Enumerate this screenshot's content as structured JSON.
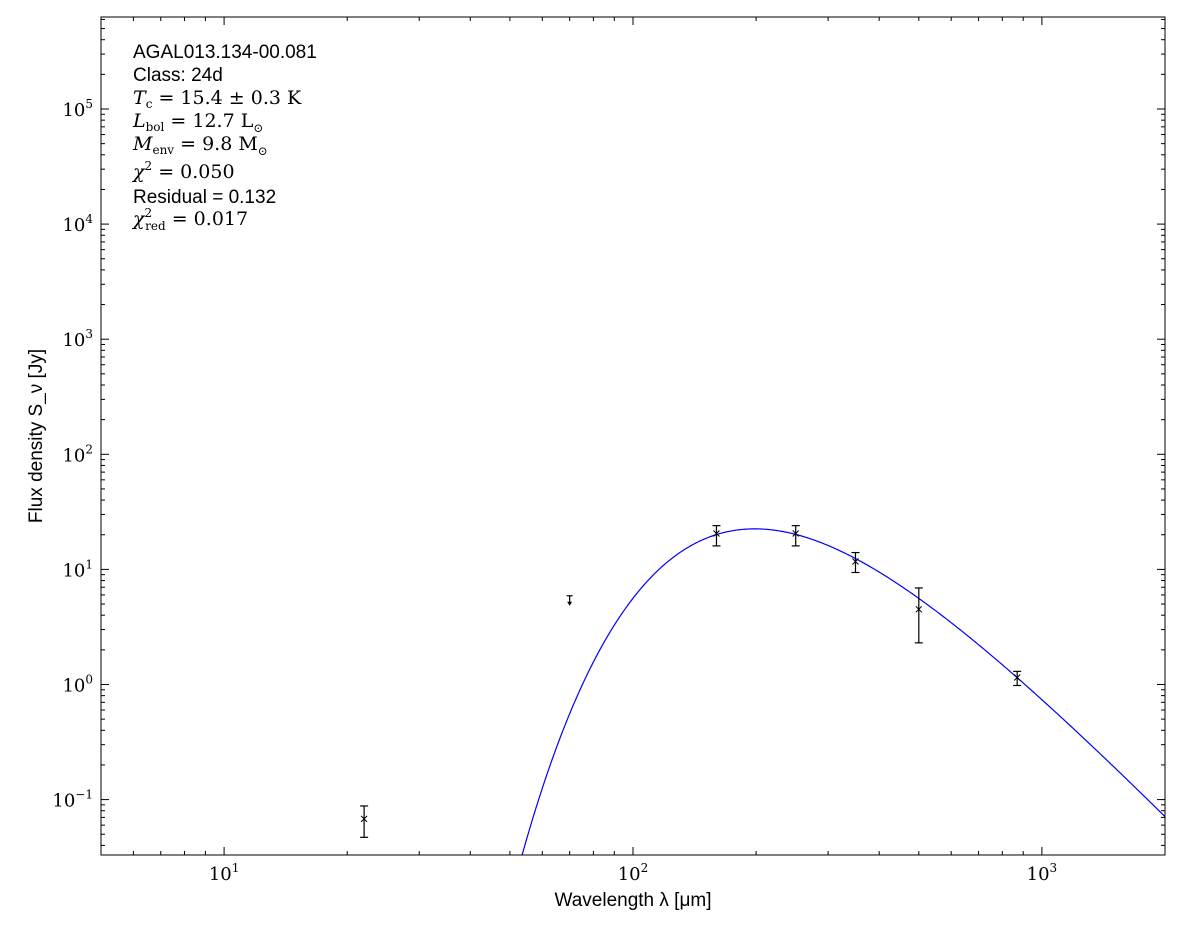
{
  "chart_data": {
    "type": "scatter",
    "xlabel": "Wavelength λ [μm]",
    "ylabel": "Flux density S_ν [Jy]",
    "xscale": "log",
    "yscale": "log",
    "xlim": [
      5,
      2000
    ],
    "ylim": [
      0.033,
      630000
    ],
    "xticks": [
      {
        "value": 10,
        "base": "10",
        "exp": "1"
      },
      {
        "value": 100,
        "base": "10",
        "exp": "2"
      },
      {
        "value": 1000,
        "base": "10",
        "exp": "3"
      }
    ],
    "yticks": [
      {
        "value": 0.1,
        "base": "10",
        "exp": "−1"
      },
      {
        "value": 1,
        "base": "10",
        "exp": "0"
      },
      {
        "value": 10,
        "base": "10",
        "exp": "1"
      },
      {
        "value": 100,
        "base": "10",
        "exp": "2"
      },
      {
        "value": 1000,
        "base": "10",
        "exp": "3"
      },
      {
        "value": 10000,
        "base": "10",
        "exp": "4"
      },
      {
        "value": 100000,
        "base": "10",
        "exp": "5"
      }
    ],
    "grid": false,
    "points": [
      {
        "x": 22,
        "y": 0.068,
        "ylo": 0.047,
        "yhi": 0.088
      },
      {
        "x": 160,
        "y": 20.5,
        "ylo": 16,
        "yhi": 24
      },
      {
        "x": 250,
        "y": 20.5,
        "ylo": 16,
        "yhi": 24
      },
      {
        "x": 350,
        "y": 11.7,
        "ylo": 9.4,
        "yhi": 14
      },
      {
        "x": 500,
        "y": 4.5,
        "ylo": 2.3,
        "yhi": 6.9
      },
      {
        "x": 870,
        "y": 1.15,
        "ylo": 0.98,
        "yhi": 1.3
      }
    ],
    "upper_limits": [
      {
        "x": 70,
        "y": 5.9
      }
    ],
    "model": {
      "type": "greybody",
      "temperature_K": 15.4,
      "beta": 1.75,
      "peak_flux": 22.5,
      "color": "#0000ff"
    },
    "point_color": "#000000",
    "annotations": {
      "source": "AGAL013.134-00.081",
      "class": "Class: 24d",
      "tc": {
        "sym": "T",
        "sub": "c",
        "rest": " = 15.4 ± 0.3 K"
      },
      "lbol": {
        "sym": "L",
        "sub": "bol",
        "rest": " = 12.7 L",
        "sun": "⊙"
      },
      "menv": {
        "sym": "M",
        "sub": "env",
        "rest": " = 9.8 M",
        "sun": "⊙"
      },
      "chi2": {
        "sym": "χ",
        "sup": "2",
        "rest": " = 0.050"
      },
      "residual": "Residual = 0.132",
      "chi2red": {
        "sym": "χ",
        "sup": "2",
        "sub": "red",
        "rest": " = 0.017"
      }
    }
  }
}
